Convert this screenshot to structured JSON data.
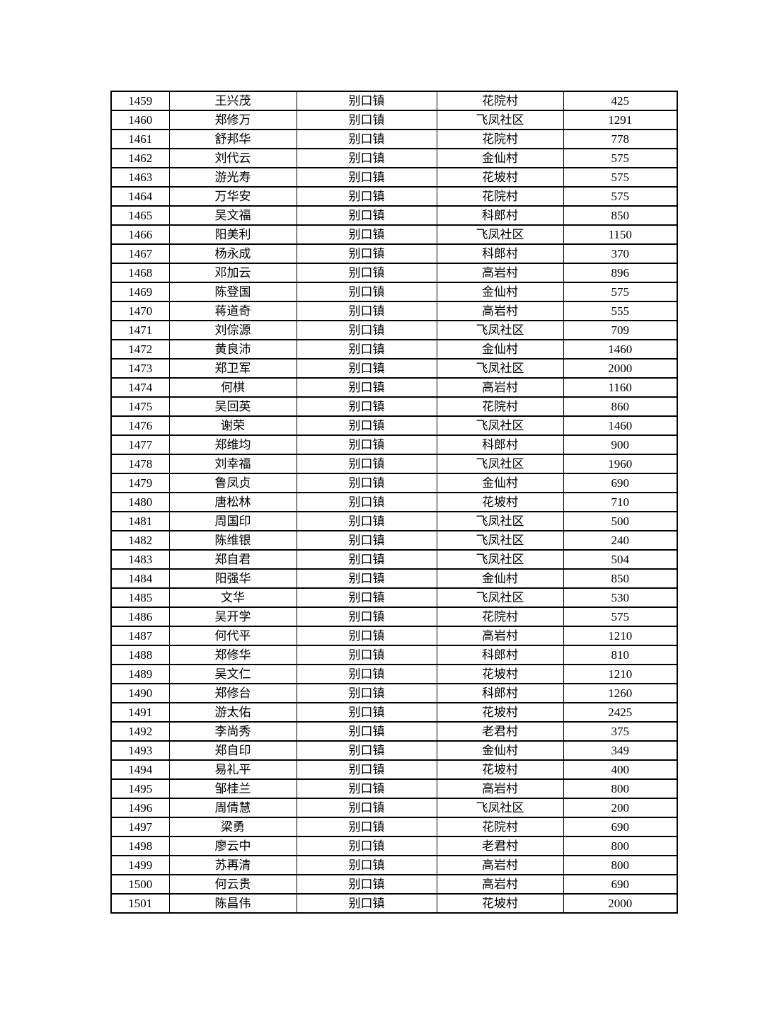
{
  "table": {
    "columns": [
      "serial",
      "name",
      "town",
      "village",
      "amount"
    ],
    "rows": [
      {
        "serial": "1459",
        "name": "王兴茂",
        "town": "别口镇",
        "village": "花院村",
        "amount": "425"
      },
      {
        "serial": "1460",
        "name": "郑修万",
        "town": "别口镇",
        "village": "飞凤社区",
        "amount": "1291"
      },
      {
        "serial": "1461",
        "name": "舒邦华",
        "town": "别口镇",
        "village": "花院村",
        "amount": "778"
      },
      {
        "serial": "1462",
        "name": "刘代云",
        "town": "别口镇",
        "village": "金仙村",
        "amount": "575"
      },
      {
        "serial": "1463",
        "name": "游光寿",
        "town": "别口镇",
        "village": "花坡村",
        "amount": "575"
      },
      {
        "serial": "1464",
        "name": "万华安",
        "town": "别口镇",
        "village": "花院村",
        "amount": "575"
      },
      {
        "serial": "1465",
        "name": "吴文福",
        "town": "别口镇",
        "village": "科郎村",
        "amount": "850"
      },
      {
        "serial": "1466",
        "name": "阳美利",
        "town": "别口镇",
        "village": "飞凤社区",
        "amount": "1150"
      },
      {
        "serial": "1467",
        "name": "杨永成",
        "town": "别口镇",
        "village": "科郎村",
        "amount": "370"
      },
      {
        "serial": "1468",
        "name": "邓加云",
        "town": "别口镇",
        "village": "高岩村",
        "amount": "896"
      },
      {
        "serial": "1469",
        "name": "陈登国",
        "town": "别口镇",
        "village": "金仙村",
        "amount": "575"
      },
      {
        "serial": "1470",
        "name": "蒋道奇",
        "town": "别口镇",
        "village": "高岩村",
        "amount": "555"
      },
      {
        "serial": "1471",
        "name": "刘倧源",
        "town": "别口镇",
        "village": "飞凤社区",
        "amount": "709"
      },
      {
        "serial": "1472",
        "name": "黄良沛",
        "town": "别口镇",
        "village": "金仙村",
        "amount": "1460"
      },
      {
        "serial": "1473",
        "name": "郑卫军",
        "town": "别口镇",
        "village": "飞凤社区",
        "amount": "2000"
      },
      {
        "serial": "1474",
        "name": "何棋",
        "town": "别口镇",
        "village": "高岩村",
        "amount": "1160"
      },
      {
        "serial": "1475",
        "name": "吴回英",
        "town": "别口镇",
        "village": "花院村",
        "amount": "860"
      },
      {
        "serial": "1476",
        "name": "谢荣",
        "town": "别口镇",
        "village": "飞凤社区",
        "amount": "1460"
      },
      {
        "serial": "1477",
        "name": "郑维均",
        "town": "别口镇",
        "village": "科郎村",
        "amount": "900"
      },
      {
        "serial": "1478",
        "name": "刘幸福",
        "town": "别口镇",
        "village": "飞凤社区",
        "amount": "1960"
      },
      {
        "serial": "1479",
        "name": "鲁凤贞",
        "town": "别口镇",
        "village": "金仙村",
        "amount": "690"
      },
      {
        "serial": "1480",
        "name": "唐松林",
        "town": "别口镇",
        "village": "花坡村",
        "amount": "710"
      },
      {
        "serial": "1481",
        "name": "周国印",
        "town": "别口镇",
        "village": "飞凤社区",
        "amount": "500"
      },
      {
        "serial": "1482",
        "name": "陈维银",
        "town": "别口镇",
        "village": "飞凤社区",
        "amount": "240"
      },
      {
        "serial": "1483",
        "name": "郑自君",
        "town": "别口镇",
        "village": "飞凤社区",
        "amount": "504"
      },
      {
        "serial": "1484",
        "name": "阳强华",
        "town": "别口镇",
        "village": "金仙村",
        "amount": "850"
      },
      {
        "serial": "1485",
        "name": "文华",
        "town": "别口镇",
        "village": "飞凤社区",
        "amount": "530"
      },
      {
        "serial": "1486",
        "name": "吴开学",
        "town": "别口镇",
        "village": "花院村",
        "amount": "575"
      },
      {
        "serial": "1487",
        "name": "何代平",
        "town": "别口镇",
        "village": "高岩村",
        "amount": "1210"
      },
      {
        "serial": "1488",
        "name": "郑修华",
        "town": "别口镇",
        "village": "科郎村",
        "amount": "810"
      },
      {
        "serial": "1489",
        "name": "吴文仁",
        "town": "别口镇",
        "village": "花坡村",
        "amount": "1210"
      },
      {
        "serial": "1490",
        "name": "郑修台",
        "town": "别口镇",
        "village": "科郎村",
        "amount": "1260"
      },
      {
        "serial": "1491",
        "name": "游太佑",
        "town": "别口镇",
        "village": "花坡村",
        "amount": "2425"
      },
      {
        "serial": "1492",
        "name": "李尚秀",
        "town": "别口镇",
        "village": "老君村",
        "amount": "375"
      },
      {
        "serial": "1493",
        "name": "郑自印",
        "town": "别口镇",
        "village": "金仙村",
        "amount": "349"
      },
      {
        "serial": "1494",
        "name": "易礼平",
        "town": "别口镇",
        "village": "花坡村",
        "amount": "400"
      },
      {
        "serial": "1495",
        "name": "邹桂兰",
        "town": "别口镇",
        "village": "高岩村",
        "amount": "800"
      },
      {
        "serial": "1496",
        "name": "周倩慧",
        "town": "别口镇",
        "village": "飞凤社区",
        "amount": "200"
      },
      {
        "serial": "1497",
        "name": "梁勇",
        "town": "别口镇",
        "village": "花院村",
        "amount": "690"
      },
      {
        "serial": "1498",
        "name": "廖云中",
        "town": "别口镇",
        "village": "老君村",
        "amount": "800"
      },
      {
        "serial": "1499",
        "name": "苏再清",
        "town": "别口镇",
        "village": "高岩村",
        "amount": "800"
      },
      {
        "serial": "1500",
        "name": "何云贵",
        "town": "别口镇",
        "village": "高岩村",
        "amount": "690"
      },
      {
        "serial": "1501",
        "name": "陈昌伟",
        "town": "别口镇",
        "village": "花坡村",
        "amount": "2000"
      }
    ]
  }
}
